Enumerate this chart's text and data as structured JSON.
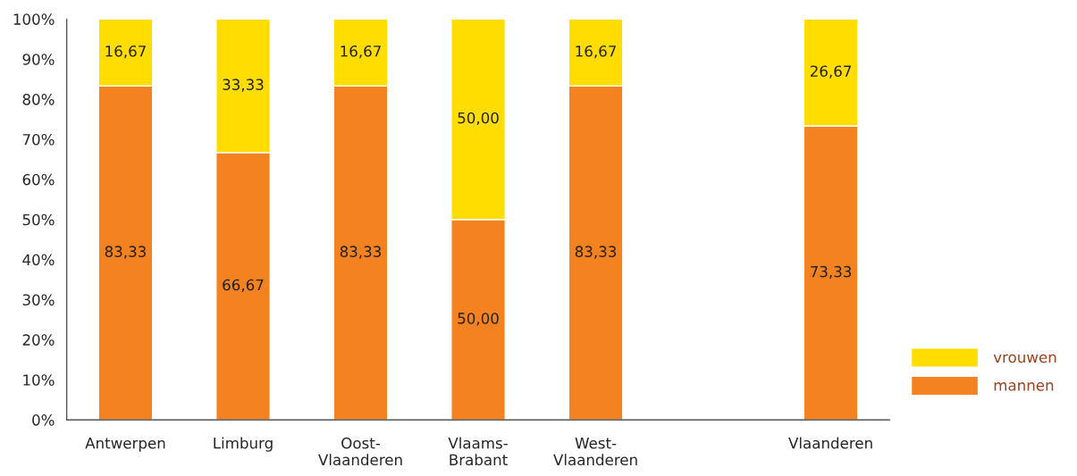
{
  "chart_data": {
    "type": "bar",
    "stacked": true,
    "categories": [
      "Antwerpen",
      "Limburg",
      "Oost-\nVlaanderen",
      "Vlaams-\nBrabant",
      "West-\nVlaanderen",
      null,
      "Vlaanderen"
    ],
    "series": [
      {
        "name": "mannen",
        "color": "#f58220",
        "values": [
          83.33,
          66.67,
          83.33,
          50.0,
          83.33,
          null,
          73.33
        ],
        "value_labels": [
          "83,33",
          "66,67",
          "83,33",
          "50,00",
          "83,33",
          null,
          "73,33"
        ]
      },
      {
        "name": "vrouwen",
        "color": "#ffdd00",
        "values": [
          16.67,
          33.33,
          16.67,
          50.0,
          16.67,
          null,
          26.67
        ],
        "value_labels": [
          "16,67",
          "33,33",
          "16,67",
          "50,00",
          "16,67",
          null,
          "26,67"
        ]
      }
    ],
    "ylim": [
      0,
      100
    ],
    "yticks": [
      {
        "value": 0,
        "label": "0%"
      },
      {
        "value": 10,
        "label": "10%"
      },
      {
        "value": 20,
        "label": "20%"
      },
      {
        "value": 30,
        "label": "30%"
      },
      {
        "value": 40,
        "label": "40%"
      },
      {
        "value": 50,
        "label": "50%"
      },
      {
        "value": 60,
        "label": "60%"
      },
      {
        "value": 70,
        "label": "70%"
      },
      {
        "value": 80,
        "label": "80%"
      },
      {
        "value": 90,
        "label": "90%"
      },
      {
        "value": 100,
        "label": "100%"
      }
    ],
    "grid": false,
    "legend": "right"
  }
}
